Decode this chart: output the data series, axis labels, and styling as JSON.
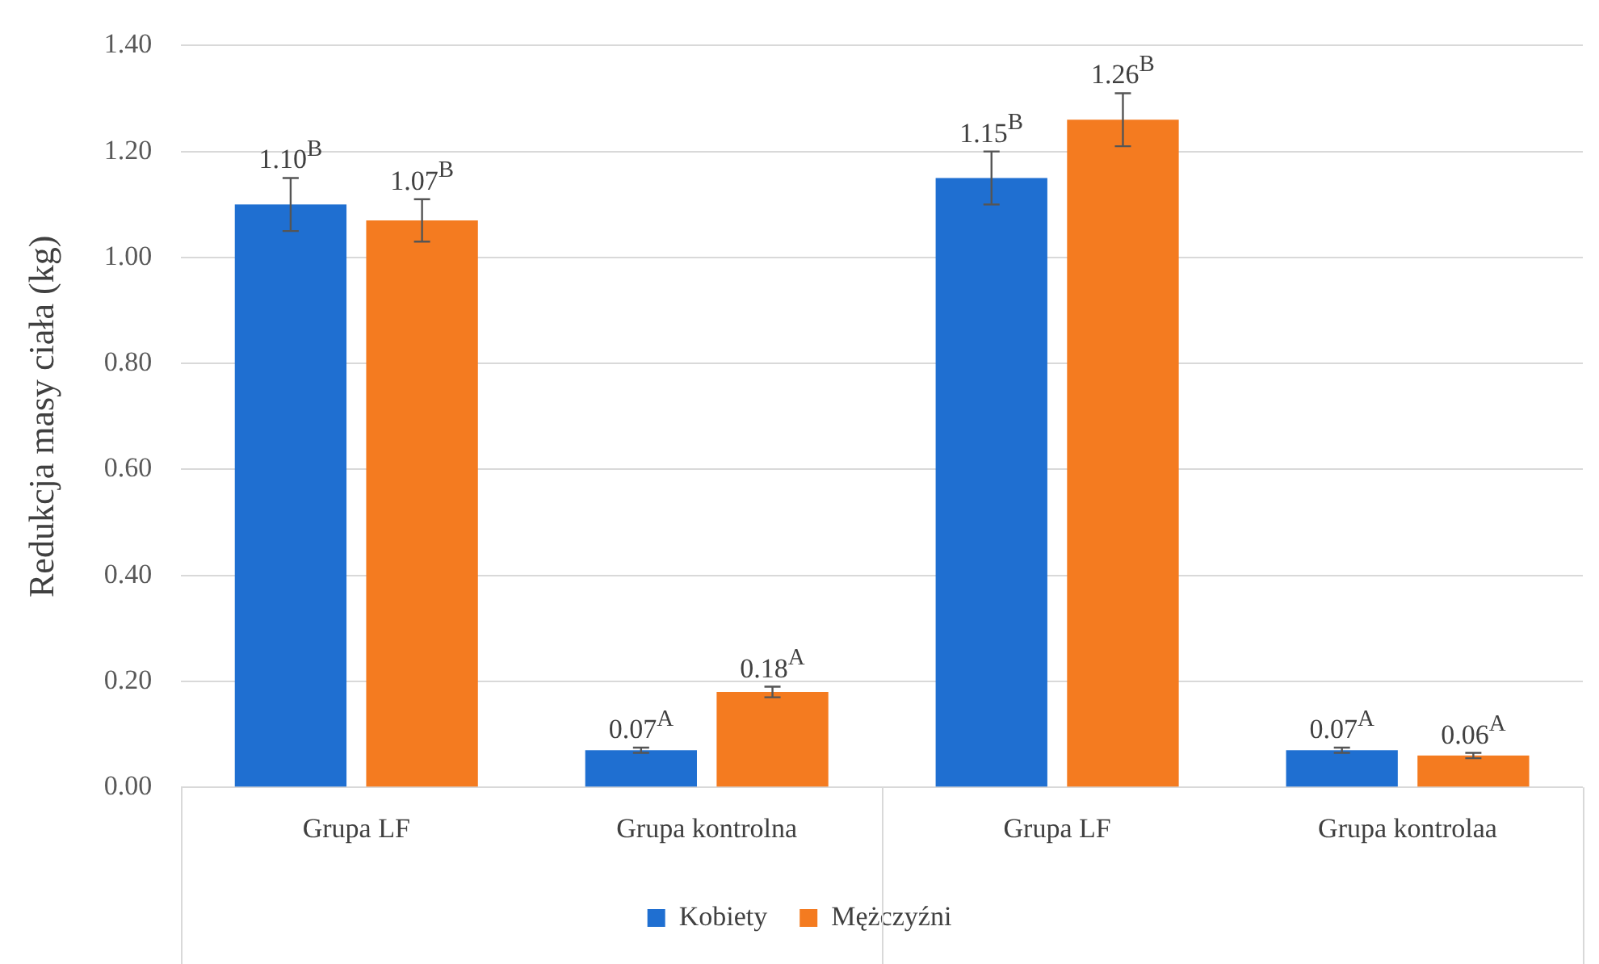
{
  "chart_data": {
    "type": "bar",
    "ylabel": "Redukcja masy ciała (kg)",
    "categories": [
      "Grupa LF",
      "Grupa kontrolna",
      "Grupa LF",
      "Grupa kontrolaa"
    ],
    "series": [
      {
        "name": "Kobiety",
        "color": "#1f6fd1",
        "values": [
          1.1,
          0.07,
          1.15,
          0.07
        ],
        "errors": [
          0.05,
          0.005,
          0.05,
          0.005
        ],
        "value_labels": [
          "1.10$^{B}$",
          "0.07$^{A}$",
          "1.15$^{B}$",
          "0.07$^{A}$"
        ]
      },
      {
        "name": "Mężczyźni",
        "color": "#f47b20",
        "values": [
          1.07,
          0.18,
          1.26,
          0.06
        ],
        "errors": [
          0.04,
          0.01,
          0.05,
          0.005
        ],
        "value_labels": [
          "1.07$^{B}$",
          "0.18$^{A}$",
          "1.26$^{B}$",
          "0.06$^{A}$"
        ]
      }
    ],
    "ylim": [
      0,
      1.4
    ],
    "yticks": [
      {
        "value": 0,
        "label": "0.00"
      },
      {
        "value": 0.2,
        "label": "0.20"
      },
      {
        "value": 0.4,
        "label": "0.40"
      },
      {
        "value": 0.6,
        "label": "0.60"
      },
      {
        "value": 0.8,
        "label": "0.80"
      },
      {
        "value": 1.0,
        "label": "1.00"
      },
      {
        "value": 1.2,
        "label": "1.20"
      },
      {
        "value": 1.4,
        "label": "1.40"
      }
    ],
    "grid": "y",
    "legend": "bottom"
  }
}
